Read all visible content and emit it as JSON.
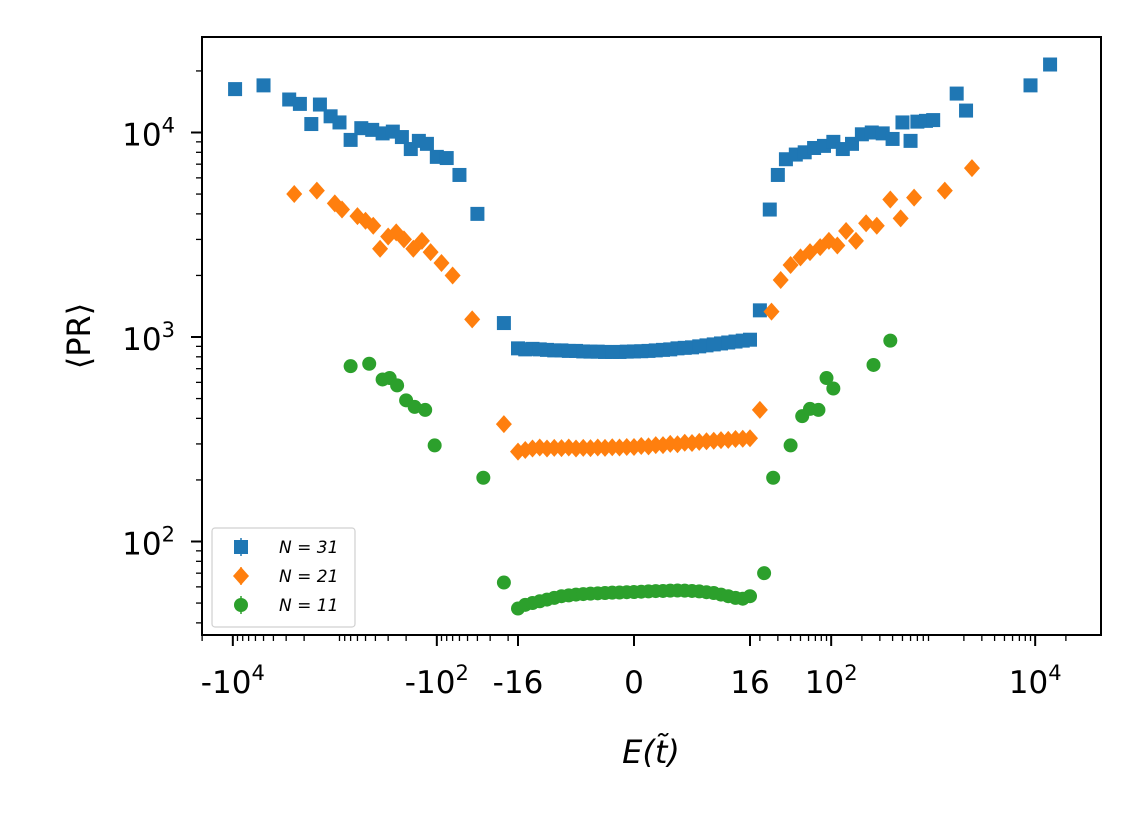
{
  "chart_data": {
    "type": "scatter",
    "title": "",
    "xlabel": "E(t̃)",
    "ylabel": "⟨PR⟩",
    "x_scale": "symlog",
    "x_linthresh": 16,
    "y_scale": "log",
    "xlim": [
      -30000,
      30000
    ],
    "ylim": [
      33,
      28000
    ],
    "grid": false,
    "legend_position": "lower-left",
    "x_ticks": [
      {
        "value": -10000,
        "base": "-10",
        "exp": "4"
      },
      {
        "value": -100,
        "base": "-10",
        "exp": "2"
      },
      {
        "value": -16,
        "base": "-16",
        "exp": ""
      },
      {
        "value": 0,
        "base": "0",
        "exp": ""
      },
      {
        "value": 16,
        "base": "16",
        "exp": ""
      },
      {
        "value": 100,
        "base": "10",
        "exp": "2"
      },
      {
        "value": 10000,
        "base": "10",
        "exp": "4"
      }
    ],
    "y_ticks": [
      {
        "value": 100,
        "base": "10",
        "exp": "2"
      },
      {
        "value": 1000,
        "base": "10",
        "exp": "3"
      },
      {
        "value": 10000,
        "base": "10",
        "exp": "4"
      }
    ],
    "series": [
      {
        "name": "N = 31",
        "legend_label": "N = 31",
        "color": "#1f77b4",
        "marker": "square",
        "points": [
          [
            -9500,
            16300
          ],
          [
            -5000,
            17000
          ],
          [
            -2800,
            14500
          ],
          [
            -2200,
            13800
          ],
          [
            -1700,
            11000
          ],
          [
            -1400,
            13700
          ],
          [
            -1100,
            12000
          ],
          [
            -900,
            11200
          ],
          [
            -700,
            9200
          ],
          [
            -550,
            10500
          ],
          [
            -430,
            10300
          ],
          [
            -340,
            9900
          ],
          [
            -270,
            10100
          ],
          [
            -220,
            9500
          ],
          [
            -180,
            8300
          ],
          [
            -150,
            9100
          ],
          [
            -125,
            8800
          ],
          [
            -100,
            7600
          ],
          [
            -80,
            7500
          ],
          [
            -60,
            6200
          ],
          [
            -40,
            4000
          ],
          [
            -22,
            1170
          ],
          [
            -16,
            880
          ],
          [
            -15,
            870
          ],
          [
            -14,
            875
          ],
          [
            -13,
            870
          ],
          [
            -12,
            865
          ],
          [
            -11,
            860
          ],
          [
            -10,
            860
          ],
          [
            -9,
            855
          ],
          [
            -8,
            855
          ],
          [
            -7,
            850
          ],
          [
            -6,
            848
          ],
          [
            -5,
            848
          ],
          [
            -4,
            845
          ],
          [
            -3,
            845
          ],
          [
            -2,
            845
          ],
          [
            -1,
            848
          ],
          [
            0,
            850
          ],
          [
            1,
            852
          ],
          [
            2,
            855
          ],
          [
            3,
            860
          ],
          [
            4,
            865
          ],
          [
            5,
            870
          ],
          [
            6,
            880
          ],
          [
            7,
            885
          ],
          [
            8,
            890
          ],
          [
            9,
            900
          ],
          [
            10,
            910
          ],
          [
            11,
            920
          ],
          [
            12,
            930
          ],
          [
            13,
            940
          ],
          [
            14,
            950
          ],
          [
            15,
            960
          ],
          [
            16,
            970
          ],
          [
            20,
            1350
          ],
          [
            25,
            4200
          ],
          [
            30,
            6200
          ],
          [
            36,
            7400
          ],
          [
            45,
            7800
          ],
          [
            55,
            8000
          ],
          [
            68,
            8400
          ],
          [
            85,
            8600
          ],
          [
            105,
            9000
          ],
          [
            130,
            8300
          ],
          [
            160,
            8800
          ],
          [
            200,
            9800
          ],
          [
            250,
            10000
          ],
          [
            320,
            9900
          ],
          [
            400,
            9300
          ],
          [
            500,
            11200
          ],
          [
            600,
            9100
          ],
          [
            700,
            11300
          ],
          [
            850,
            11400
          ],
          [
            1000,
            11500
          ],
          [
            1700,
            15500
          ],
          [
            2100,
            12800
          ],
          [
            9000,
            17000
          ],
          [
            14000,
            21500
          ]
        ]
      },
      {
        "name": "N = 21",
        "legend_label": "N = 21",
        "color": "#ff7f0e",
        "marker": "diamond",
        "points": [
          [
            -2500,
            5000
          ],
          [
            -1500,
            5200
          ],
          [
            -1000,
            4500
          ],
          [
            -850,
            4200
          ],
          [
            -600,
            3900
          ],
          [
            -500,
            3700
          ],
          [
            -420,
            3500
          ],
          [
            -360,
            2700
          ],
          [
            -300,
            3100
          ],
          [
            -250,
            3250
          ],
          [
            -210,
            3000
          ],
          [
            -170,
            2700
          ],
          [
            -140,
            2950
          ],
          [
            -115,
            2600
          ],
          [
            -90,
            2300
          ],
          [
            -70,
            2000
          ],
          [
            -45,
            1220
          ],
          [
            -22,
            375
          ],
          [
            -16,
            275
          ],
          [
            -15,
            280
          ],
          [
            -14,
            285
          ],
          [
            -13,
            288
          ],
          [
            -12,
            285
          ],
          [
            -11,
            287
          ],
          [
            -10,
            286
          ],
          [
            -9,
            288
          ],
          [
            -8,
            285
          ],
          [
            -7,
            287
          ],
          [
            -6,
            286
          ],
          [
            -5,
            288
          ],
          [
            -4,
            287
          ],
          [
            -3,
            289
          ],
          [
            -2,
            288
          ],
          [
            -1,
            290
          ],
          [
            0,
            290
          ],
          [
            1,
            293
          ],
          [
            2,
            292
          ],
          [
            3,
            296
          ],
          [
            4,
            296
          ],
          [
            5,
            300
          ],
          [
            6,
            299
          ],
          [
            7,
            304
          ],
          [
            8,
            303
          ],
          [
            9,
            307
          ],
          [
            10,
            309
          ],
          [
            11,
            311
          ],
          [
            12,
            313
          ],
          [
            13,
            314
          ],
          [
            14,
            317
          ],
          [
            15,
            318
          ],
          [
            16,
            320
          ],
          [
            20,
            440
          ],
          [
            26,
            1330
          ],
          [
            32,
            1900
          ],
          [
            40,
            2250
          ],
          [
            50,
            2450
          ],
          [
            62,
            2600
          ],
          [
            78,
            2750
          ],
          [
            95,
            2950
          ],
          [
            115,
            2800
          ],
          [
            140,
            3300
          ],
          [
            175,
            2950
          ],
          [
            220,
            3600
          ],
          [
            280,
            3500
          ],
          [
            380,
            4700
          ],
          [
            480,
            3800
          ],
          [
            650,
            4800
          ],
          [
            1300,
            5200
          ],
          [
            2400,
            6700
          ]
        ]
      },
      {
        "name": "N = 11",
        "legend_label": "N = 11",
        "color": "#2ca02c",
        "marker": "circle",
        "points": [
          [
            -700,
            720
          ],
          [
            -460,
            740
          ],
          [
            -340,
            620
          ],
          [
            -290,
            630
          ],
          [
            -245,
            580
          ],
          [
            -200,
            490
          ],
          [
            -165,
            455
          ],
          [
            -130,
            440
          ],
          [
            -105,
            295
          ],
          [
            -35,
            205
          ],
          [
            -22,
            63
          ],
          [
            -16,
            47
          ],
          [
            -15,
            49
          ],
          [
            -14,
            50
          ],
          [
            -13,
            51
          ],
          [
            -12,
            52
          ],
          [
            -11,
            53
          ],
          [
            -10,
            54
          ],
          [
            -9,
            54.5
          ],
          [
            -8,
            55
          ],
          [
            -7,
            55.3
          ],
          [
            -6,
            55.6
          ],
          [
            -5,
            55.8
          ],
          [
            -4,
            56
          ],
          [
            -3,
            56.2
          ],
          [
            -2,
            56.3
          ],
          [
            -1,
            56.5
          ],
          [
            0,
            56.6
          ],
          [
            1,
            56.8
          ],
          [
            2,
            57
          ],
          [
            3,
            57.2
          ],
          [
            4,
            57.3
          ],
          [
            5,
            57.5
          ],
          [
            6,
            57.6
          ],
          [
            7,
            57.5
          ],
          [
            8,
            57.3
          ],
          [
            9,
            57
          ],
          [
            10,
            56.5
          ],
          [
            11,
            56
          ],
          [
            12,
            55
          ],
          [
            13,
            54
          ],
          [
            14,
            53
          ],
          [
            15,
            52.5
          ],
          [
            16,
            54
          ],
          [
            22,
            70
          ],
          [
            27,
            205
          ],
          [
            40,
            295
          ],
          [
            52,
            410
          ],
          [
            62,
            445
          ],
          [
            75,
            440
          ],
          [
            90,
            630
          ],
          [
            105,
            560
          ],
          [
            260,
            730
          ],
          [
            380,
            960
          ]
        ]
      }
    ]
  }
}
